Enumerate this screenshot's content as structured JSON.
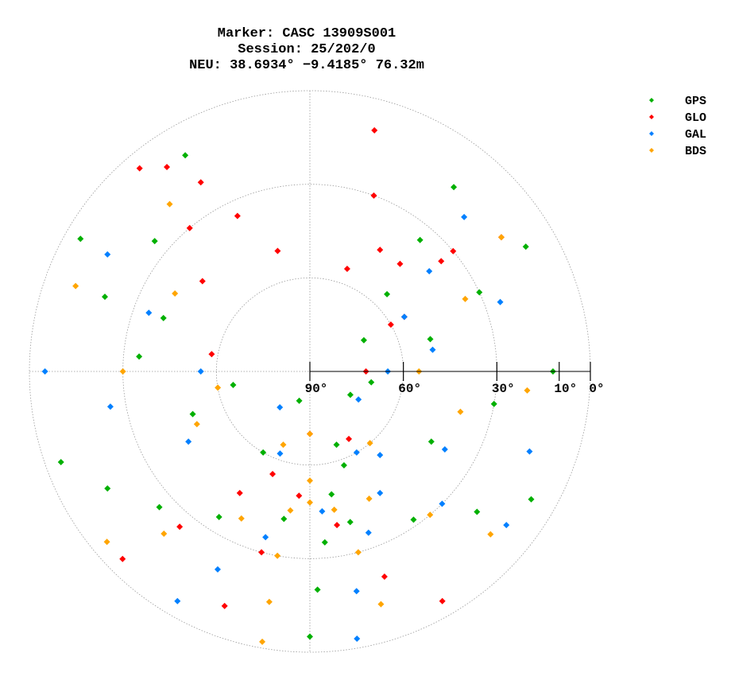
{
  "chart_data": {
    "type": "polar_scatter",
    "title": [
      "Marker: CASC 13909S001",
      "Session: 25/202/0",
      "NEU: 38.6934° −9.4185° 76.32m"
    ],
    "rlim": [
      90,
      0
    ],
    "rticks": [
      {
        "value": 90,
        "label": "90°"
      },
      {
        "value": 60,
        "label": "60°"
      },
      {
        "value": 30,
        "label": "30°"
      },
      {
        "value": 10,
        "label": "10°"
      },
      {
        "value": 0,
        "label": "0°"
      }
    ],
    "grid_circles": [
      60,
      30,
      0
    ],
    "legend": "upper right",
    "series": [
      {
        "name": "GPS",
        "color": "#00b000",
        "azimuth": [
          250,
          240,
          228,
          212,
          190,
          165,
          145,
          130,
          120,
          null,
          300,
          290,
          275,
          250,
          210,
          160,
          120,
          100,
          90,
          null,
          180,
          178,
          175,
          170,
          160,
          120,
          60,
          45,
          40,
          38,
          null,
          330,
          310,
          290,
          260,
          200,
          100,
          75,
          65,
          60
        ],
        "elevation": [
          5,
          15,
          25,
          35,
          42,
          40,
          32,
          20,
          8,
          null,
          5,
          20,
          35,
          50,
          60,
          58,
          45,
          30,
          12,
          null,
          5,
          20,
          35,
          50,
          65,
          75,
          70,
          55,
          35,
          15,
          null,
          10,
          25,
          40,
          65,
          80,
          70,
          50,
          30,
          10
        ]
      },
      {
        "name": "GLO",
        "color": "#ff0000",
        "azimuth": [
          320,
          330,
          335,
          345,
          20,
          40,
          50,
          55,
          null,
          200,
          195,
          185,
          150,
          60,
          30,
          20,
          15,
          null,
          150,
          160,
          170,
          200,
          280,
          310,
          320,
          325,
          null,
          225,
          220,
          210,
          180,
          90,
          60,
          50
        ],
        "elevation": [
          5,
          20,
          35,
          50,
          55,
          45,
          30,
          15,
          null,
          10,
          30,
          50,
          65,
          60,
          45,
          30,
          10,
          null,
          5,
          20,
          40,
          55,
          58,
          45,
          30,
          10,
          null,
          5,
          25,
          45,
          70,
          72,
          55,
          35
        ]
      },
      {
        "name": "GAL",
        "color": "#0080ff",
        "azimuth": [
          210,
          205,
          195,
          175,
          150,
          135,
          128,
          null,
          270,
          260,
          240,
          200,
          150,
          120,
          110,
          null,
          170,
          168,
          160,
          140,
          90,
          60,
          50,
          45,
          null,
          300,
          290,
          270,
          220,
          120,
          80,
          70
        ],
        "elevation": [
          5,
          20,
          35,
          45,
          45,
          30,
          10,
          null,
          5,
          25,
          45,
          62,
          60,
          40,
          15,
          null,
          3,
          18,
          35,
          55,
          65,
          55,
          40,
          20,
          null,
          15,
          35,
          55,
          75,
          72,
          50,
          25
        ]
      },
      {
        "name": "BDS",
        "color": "#ffa500",
        "azimuth": [
          230,
          222,
          205,
          180,
          155,
          140,
          132,
          null,
          190,
          190,
          190,
          188,
          180,
          170,
          165,
          163,
          null,
          290,
          270,
          245,
          200,
          140,
          105,
          95,
          null,
          320,
          300,
          260,
          180,
          90,
          65,
          55
        ],
        "elevation": [
          5,
          20,
          38,
          48,
          45,
          30,
          12,
          null,
          2,
          15,
          30,
          45,
          55,
          45,
          30,
          12,
          null,
          10,
          30,
          50,
          65,
          60,
          40,
          20,
          null,
          20,
          40,
          60,
          70,
          55,
          35,
          15
        ]
      }
    ]
  }
}
